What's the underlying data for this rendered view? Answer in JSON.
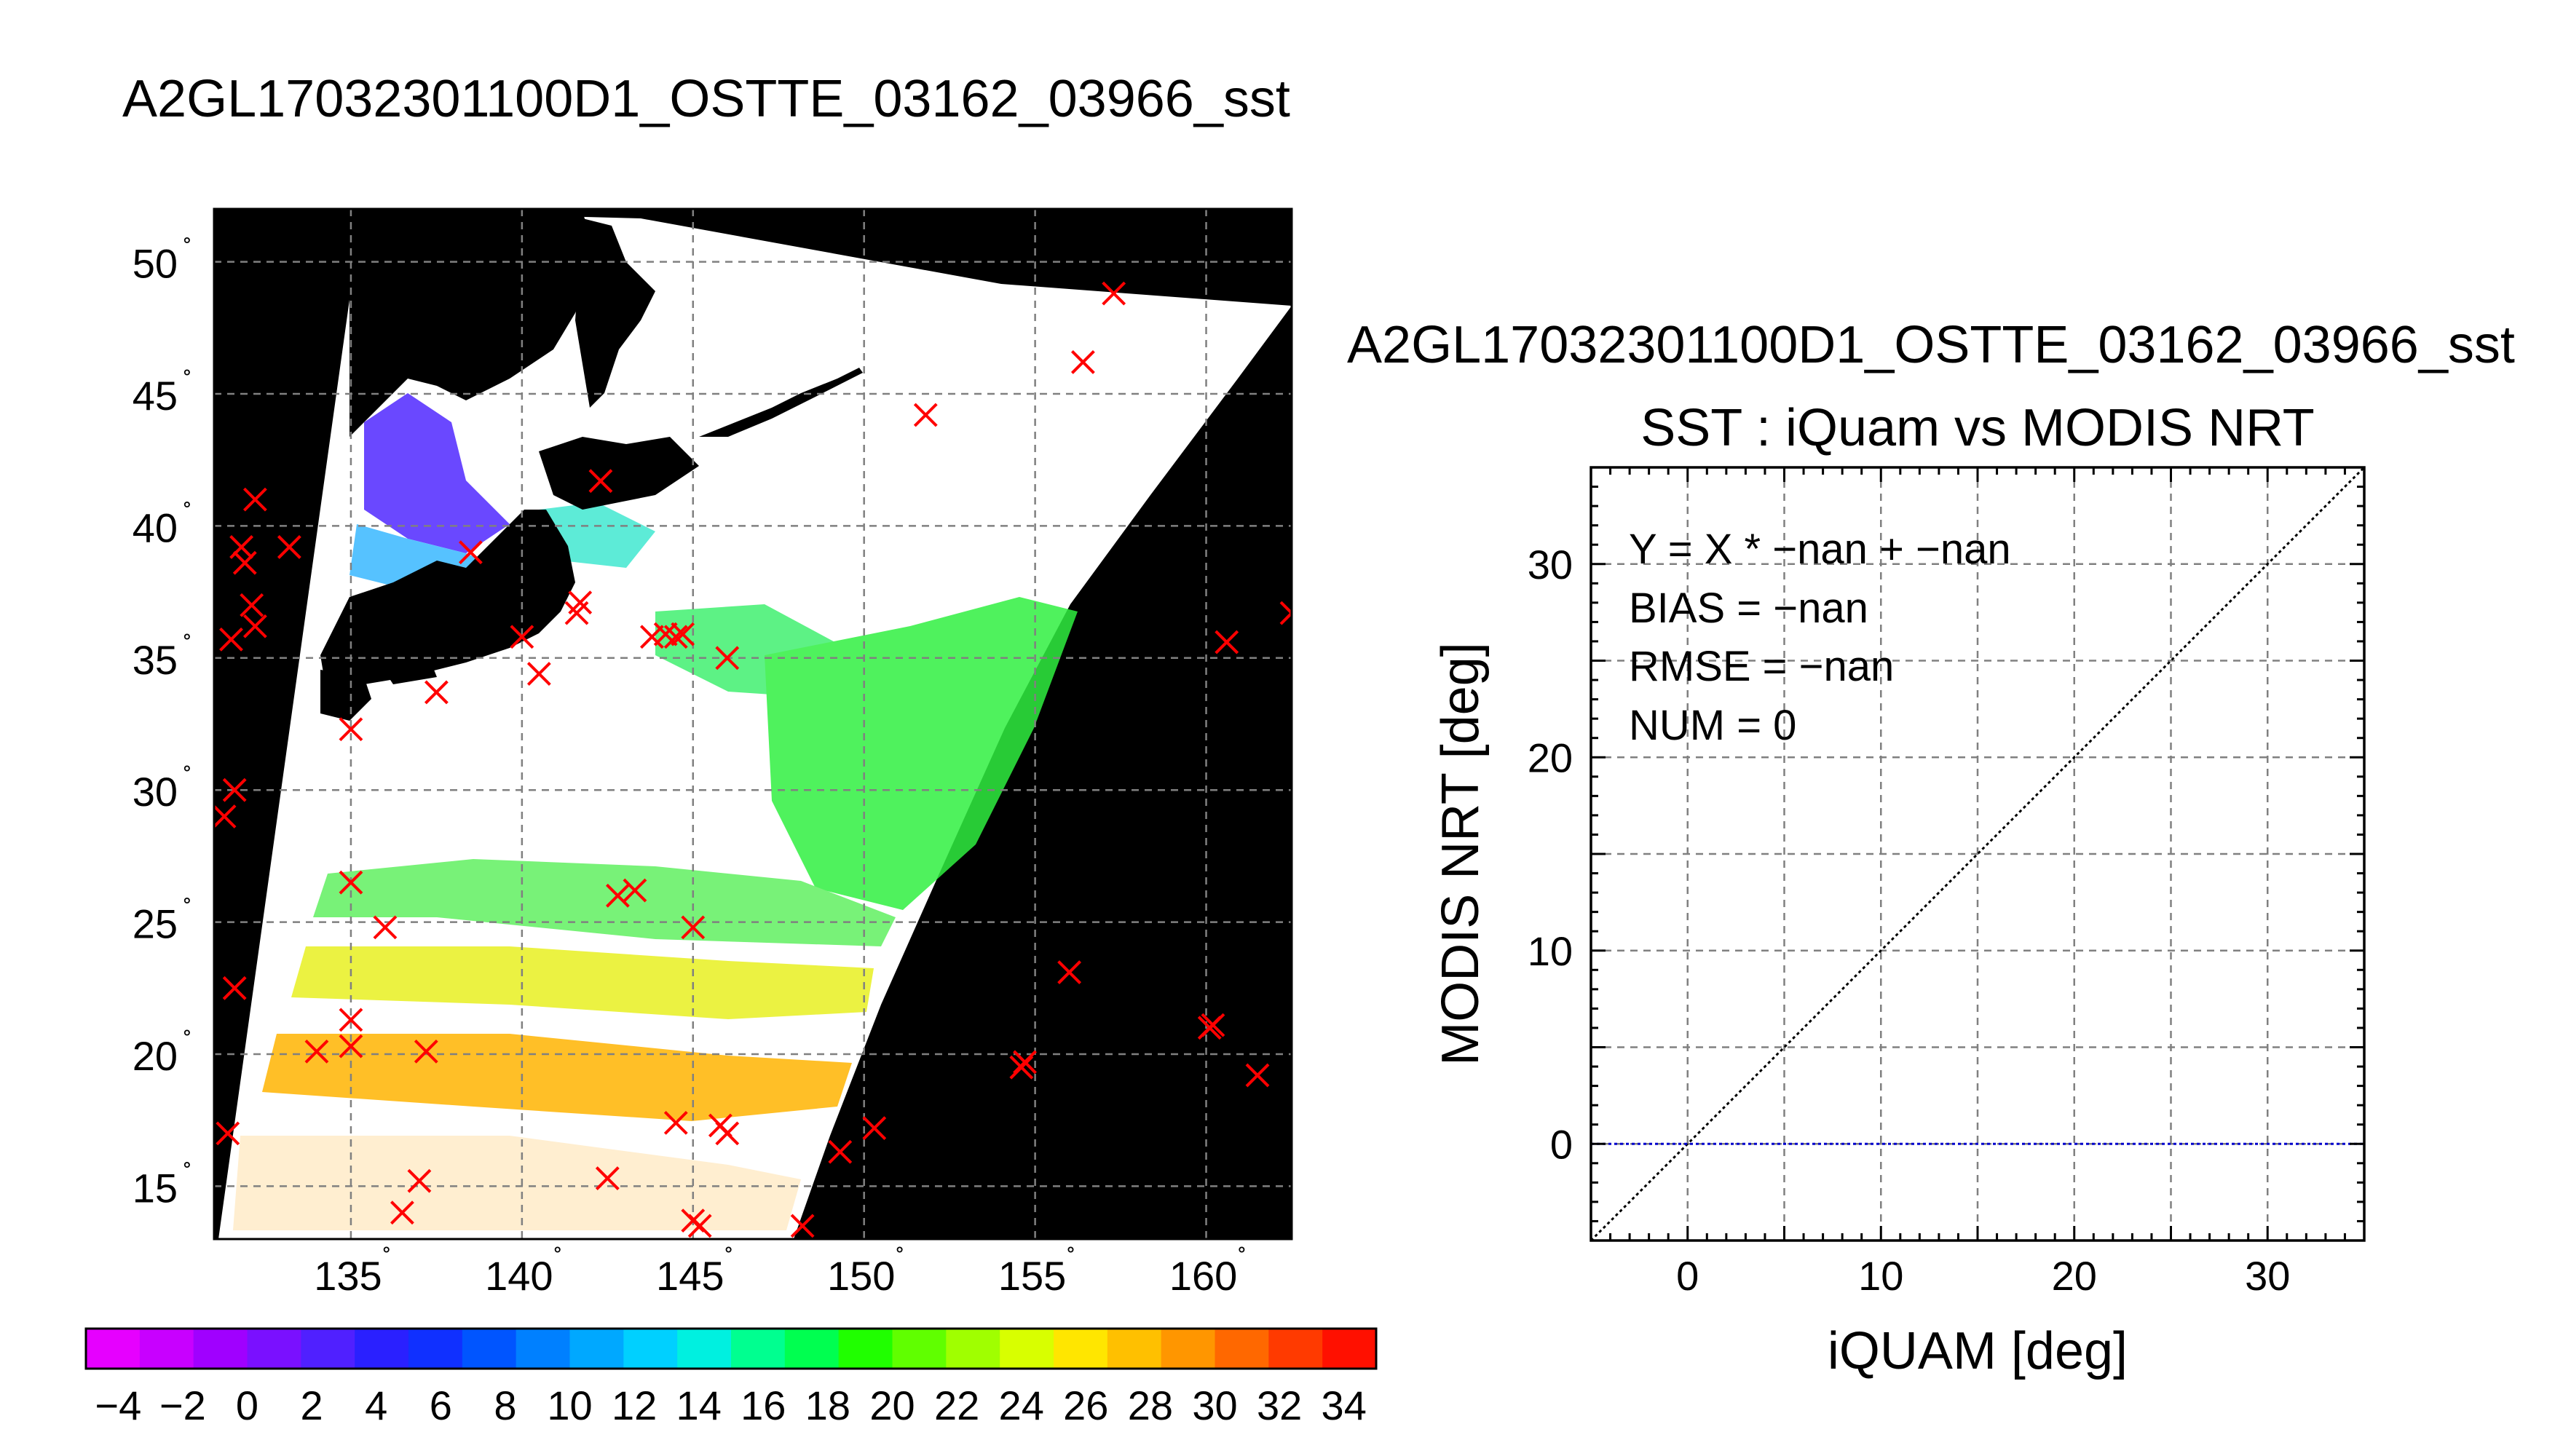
{
  "map": {
    "title": "A2GL17032301100D1_OSTTE_03162_03966_sst",
    "lat_ticks": [
      15,
      20,
      25,
      30,
      35,
      40,
      45,
      50
    ],
    "lon_ticks": [
      135,
      140,
      145,
      150,
      155,
      160
    ],
    "lat_range": [
      13,
      52
    ],
    "lon_range": [
      131,
      162.5
    ],
    "colorbar": {
      "ticks": [
        "-4",
        "-2",
        "0",
        "2",
        "4",
        "6",
        "8",
        "10",
        "12",
        "14",
        "16",
        "18",
        "20",
        "22",
        "24",
        "26",
        "28",
        "30",
        "32",
        "34"
      ],
      "range": [
        -5,
        35
      ],
      "colors": [
        "#e600ff",
        "#c800ff",
        "#a000ff",
        "#7a10ff",
        "#5020ff",
        "#2a20ff",
        "#1030ff",
        "#0055ff",
        "#0080ff",
        "#00a8ff",
        "#00d0ff",
        "#00f0e0",
        "#00ff90",
        "#00ff50",
        "#20ff00",
        "#60ff00",
        "#a0ff00",
        "#d8ff00",
        "#ffe600",
        "#ffc000",
        "#ff9600",
        "#ff6800",
        "#ff3a00",
        "#ff1000"
      ]
    },
    "obs_points": [
      [
        131.3,
        29
      ],
      [
        131.6,
        30
      ],
      [
        131.5,
        35.7
      ],
      [
        131.6,
        22.5
      ],
      [
        131.4,
        17
      ],
      [
        132.2,
        41
      ],
      [
        131.8,
        39.2
      ],
      [
        131.9,
        38.6
      ],
      [
        132.1,
        37
      ],
      [
        132.2,
        36.2
      ],
      [
        133.2,
        39.2
      ],
      [
        135,
        32.3
      ],
      [
        135,
        26.5
      ],
      [
        135,
        21.3
      ],
      [
        135,
        20.3
      ],
      [
        134,
        20.1
      ],
      [
        136,
        24.8
      ],
      [
        137.2,
        20.1
      ],
      [
        137,
        15.2
      ],
      [
        136.5,
        14
      ],
      [
        137.5,
        33.7
      ],
      [
        138.5,
        39
      ],
      [
        140,
        35.8
      ],
      [
        140.5,
        34.4
      ],
      [
        141.6,
        36.7
      ],
      [
        141.7,
        37.1
      ],
      [
        142.3,
        41.7
      ],
      [
        142.8,
        26
      ],
      [
        143.3,
        26.2
      ],
      [
        142.5,
        15.3
      ],
      [
        143.8,
        35.8
      ],
      [
        144.2,
        35.9
      ],
      [
        144.5,
        35.8
      ],
      [
        144.7,
        35.9
      ],
      [
        146,
        35
      ],
      [
        145,
        24.8
      ],
      [
        144.5,
        17.4
      ],
      [
        145.8,
        17.3
      ],
      [
        146,
        17
      ],
      [
        145,
        13.7
      ],
      [
        145.2,
        13.5
      ],
      [
        148.2,
        13.5
      ],
      [
        149.3,
        16.3
      ],
      [
        150.3,
        17.2
      ],
      [
        151.8,
        44.2
      ],
      [
        156.4,
        46.2
      ],
      [
        157.3,
        48.8
      ],
      [
        154.7,
        19.7
      ],
      [
        154.6,
        19.5
      ],
      [
        156,
        23.1
      ],
      [
        160.1,
        21
      ],
      [
        160.2,
        21.1
      ],
      [
        160.6,
        35.6
      ],
      [
        161.5,
        19.2
      ],
      [
        162.5,
        36.7
      ]
    ]
  },
  "scatter": {
    "top_title": "A2GL17032301100D1_OSTTE_03162_03966_sst",
    "title": "SST : iQuam vs MODIS NRT",
    "xlabel": "iQUAM [deg]",
    "ylabel": "MODIS NRT [deg]",
    "stats": {
      "fit": "Y = X * −nan + −nan",
      "bias": "BIAS = −nan",
      "rmse": "RMSE = −nan",
      "num": "NUM = 0"
    }
  },
  "chart_data": {
    "type": "scatter",
    "title": "SST : iQuam vs MODIS NRT",
    "xlabel": "iQUAM [deg]",
    "ylabel": "MODIS NRT [deg]",
    "xlim": [
      -5,
      35
    ],
    "ylim": [
      -5,
      35
    ],
    "xticks": [
      0,
      10,
      20,
      30
    ],
    "yticks": [
      0,
      10,
      20,
      30
    ],
    "grid": true,
    "points": [],
    "reference_lines": [
      {
        "kind": "identity",
        "from": [
          -5,
          -5
        ],
        "to": [
          35,
          35
        ],
        "color": "#000000",
        "style": "dotted"
      },
      {
        "kind": "horizontal",
        "y": 0,
        "color": "#0000cc",
        "style": "dotted"
      }
    ]
  }
}
